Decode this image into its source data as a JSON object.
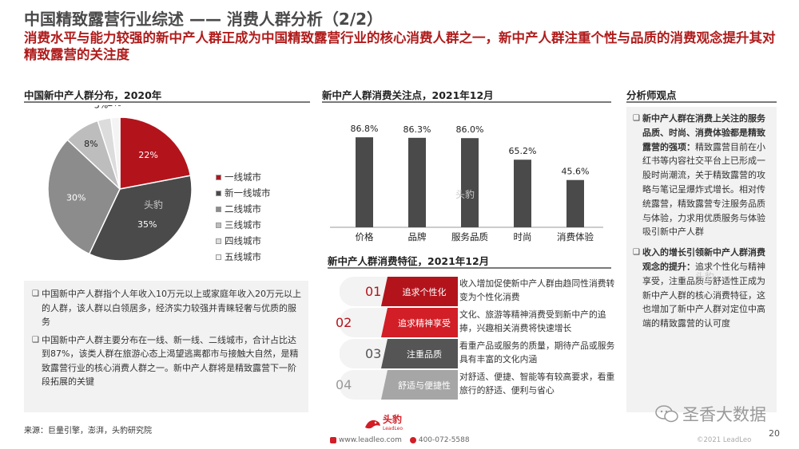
{
  "header": {
    "title": "中国精致露营行业综述 —— 消费人群分析（2/2）",
    "subtitle": "消费水平与能力较强的新中产人群正成为中国精致露营行业的核心消费人群之一，新中产人群注重个性与品质的消费观念提升其对精致露营的关注度"
  },
  "pie_section": {
    "title": "中国新中产人群分布，2020年",
    "watermark": "头豹",
    "chart_data": {
      "type": "pie",
      "categories": [
        "一线城市",
        "新一线城市",
        "二线城市",
        "三线城市",
        "四线城市",
        "五线城市"
      ],
      "values": [
        22,
        35,
        30,
        8,
        3,
        2
      ],
      "labels": [
        "22%",
        "35%",
        "30%",
        "8%",
        "3%",
        "2%"
      ],
      "colors": [
        "#b3141c",
        "#4a4a4a",
        "#8c8c8c",
        "#bdbdbd",
        "#dcdcdc",
        "#f4f4f4"
      ],
      "legend_position": "right"
    }
  },
  "bar_section": {
    "title": "新中产人群消费关注点，2021年12月",
    "watermark": "头豹",
    "chart_data": {
      "type": "bar",
      "categories": [
        "价格",
        "品牌",
        "服务品质",
        "时尚",
        "消费体验"
      ],
      "values": [
        86.8,
        86.3,
        86.0,
        65.2,
        45.6
      ],
      "labels": [
        "86.8%",
        "86.3%",
        "86.0%",
        "65.2%",
        "45.6%"
      ],
      "color": "#4a4a4a",
      "ylim": [
        0,
        100
      ],
      "grid": false
    }
  },
  "features": {
    "title": "新中产人群消费特征，2021年12月",
    "items": [
      {
        "num": "01",
        "label": "追求个性化",
        "text": "收入增加促使新中产人群由趋同性消费转变为个性化消费"
      },
      {
        "num": "02",
        "label": "追求精神享受",
        "text": "文化、旅游等精神消费受到新中产的追捧，兴趣相关消费将快速增长"
      },
      {
        "num": "03",
        "label": "注重品质",
        "text": "看重产品或服务的质量，期待产品或服务具有丰富的文化内涵"
      },
      {
        "num": "04",
        "label": "舒适与便捷性",
        "text": "对舒适、便捷、智能等有较高要求，看重旅行的舒适、便利与省心"
      }
    ]
  },
  "notes": {
    "items": [
      "中国新中产人群指个人年收入10万元以上或家庭年收入20万元以上的人群，该人群以白领居多，经济实力较强并青睐轻奢与优质的服务",
      "中国新中产人群主要分布在一线、新一线、二线城市，合计占比达到87%，该类人群在旅游心态上渴望逃离都市与接触大自然，是精致露营行业的核心消费人群之一。新中产人群将是精致露营下一阶段拓展的关键"
    ]
  },
  "analyst": {
    "title": "分析师观点",
    "items": [
      {
        "bold": "新中产人群在消费上关注的服务品质、时尚、消费体验都是精致露营的强项：",
        "text": "精致露营目前在小红书等内容社交平台上已形成一股时尚潮流，关于精致露营的攻略与笔记呈爆炸式增长。相对传统露营，精致露营专注服务品质与体验，力求用优质服务与体验吸引新中产人群"
      },
      {
        "bold": "收入的增长引领新中产人群消费观念的提升：",
        "text": "追求个性化与精神享受，注重品质与舒适性正成为新中产人群的核心消费特征，这也增加了新中产人群对定位中高端的精致露营的认可度"
      }
    ],
    "watermark": "头豹"
  },
  "footer": {
    "source": "来源：巨量引擎，澎湃，头豹研究院",
    "logo_text": "头豹",
    "logo_sub": "LeadLeo",
    "website": "www.leadleo.com",
    "phone": "400-072-5588",
    "wechat": "圣香大数据",
    "copyright": "©2021 LeadLeo",
    "page": "20"
  }
}
